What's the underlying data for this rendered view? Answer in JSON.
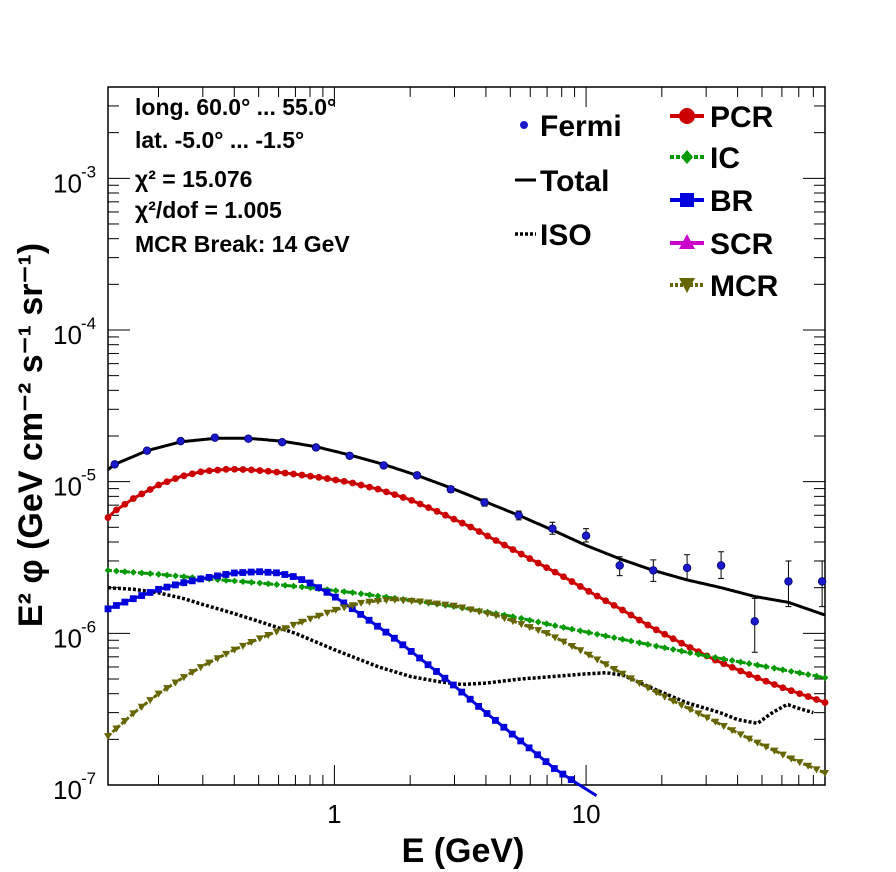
{
  "chart_data": {
    "type": "line",
    "xlabel": "E (GeV)",
    "ylabel": "E² φ (GeV cm⁻² s⁻¹ sr⁻¹)",
    "xscale": "log",
    "yscale": "log",
    "xlim": [
      0.126,
      89
    ],
    "ylim": [
      1e-07,
      0.004
    ],
    "x_ticks": [
      {
        "value": 1,
        "label": "1"
      },
      {
        "value": 10,
        "label": "10"
      }
    ],
    "y_ticks": [
      {
        "value": 1e-07,
        "base": "10",
        "exp": "-7"
      },
      {
        "value": 1e-06,
        "base": "10",
        "exp": "-6"
      },
      {
        "value": 1e-05,
        "base": "10",
        "exp": "-5"
      },
      {
        "value": 0.0001,
        "base": "10",
        "exp": "-4"
      },
      {
        "value": 0.001,
        "base": "10",
        "exp": "-3"
      }
    ],
    "info_lines": [
      "long. 60.0° ... 55.0°",
      "lat. -5.0° ... -1.5°",
      "χ² = 15.076",
      "χ²/dof = 1.005",
      "MCR Break: 14 GeV"
    ],
    "legend_left": [
      {
        "name": "Fermi",
        "color": "#1a1acc",
        "marker": "dot"
      },
      {
        "name": "Total",
        "color": "#000000",
        "marker": "solid"
      },
      {
        "name": "ISO",
        "color": "#000000",
        "marker": "dotted"
      }
    ],
    "legend_right": [
      {
        "name": "PCR",
        "color": "#cc0000",
        "marker": "circle"
      },
      {
        "name": "IC",
        "color": "#009900",
        "marker": "diamond"
      },
      {
        "name": "BR",
        "color": "#0000dd",
        "marker": "square"
      },
      {
        "name": "SCR",
        "color": "#cc00cc",
        "marker": "triangle-up"
      },
      {
        "name": "MCR",
        "color": "#666600",
        "marker": "triangle-down"
      }
    ],
    "fermi": {
      "x": [
        0.134,
        0.18,
        0.245,
        0.335,
        0.455,
        0.62,
        0.845,
        1.15,
        1.57,
        2.13,
        2.9,
        3.95,
        5.4,
        7.35,
        10.0,
        13.6,
        18.5,
        25.2,
        34.4,
        46.8,
        63.7,
        86.7
      ],
      "y": [
        1.3e-05,
        1.6e-05,
        1.85e-05,
        1.95e-05,
        1.92e-05,
        1.82e-05,
        1.68e-05,
        1.48e-05,
        1.28e-05,
        1.1e-05,
        8.9e-06,
        7.3e-06,
        6e-06,
        4.9e-06,
        4.4e-06,
        2.8e-06,
        2.6e-06,
        2.7e-06,
        2.8e-06,
        1.2e-06,
        2.2e-06,
        2.2e-06
      ],
      "err_lo": [
        1.26e-05,
        1.55e-05,
        1.8e-05,
        1.9e-05,
        1.87e-05,
        1.77e-05,
        1.64e-05,
        1.44e-05,
        1.24e-05,
        1.06e-05,
        8.5e-06,
        6.9e-06,
        5.6e-06,
        4.5e-06,
        4e-06,
        2.4e-06,
        2.2e-06,
        2.25e-06,
        2.3e-06,
        7.5e-07,
        1.5e-06,
        1.5e-06
      ],
      "err_hi": [
        1.34e-05,
        1.65e-05,
        1.9e-05,
        2e-05,
        1.97e-05,
        1.87e-05,
        1.72e-05,
        1.52e-05,
        1.32e-05,
        1.14e-05,
        9.3e-06,
        7.7e-06,
        6.4e-06,
        5.4e-06,
        4.9e-06,
        3.2e-06,
        3.05e-06,
        3.3e-06,
        3.45e-06,
        1.7e-06,
        3e-06,
        3e-06
      ]
    },
    "total": {
      "x": [
        0.126,
        0.134,
        0.18,
        0.245,
        0.335,
        0.455,
        0.62,
        0.845,
        1.15,
        1.57,
        2.13,
        2.9,
        3.95,
        5.4,
        7.35,
        10.0,
        13.6,
        18.5,
        25.2,
        34.4,
        46.8,
        63.7,
        89
      ],
      "y": [
        1.2e-05,
        1.3e-05,
        1.6e-05,
        1.83e-05,
        1.93e-05,
        1.93e-05,
        1.85e-05,
        1.7e-05,
        1.5e-05,
        1.3e-05,
        1.1e-05,
        9.1e-06,
        7.4e-06,
        6e-06,
        4.8e-06,
        3.8e-06,
        3.1e-06,
        2.6e-06,
        2.25e-06,
        2e-06,
        1.75e-06,
        1.6e-06,
        1.32e-06
      ]
    },
    "series": [
      {
        "name": "PCR",
        "color": "#cc0000",
        "marker": "circle",
        "x": [
          0.126,
          0.134,
          0.16,
          0.2,
          0.245,
          0.3,
          0.38,
          0.455,
          0.55,
          0.7,
          0.9,
          1.15,
          1.5,
          2.0,
          2.6,
          3.5,
          4.5,
          6.0,
          8.0,
          10.5,
          14.0,
          18.5,
          25.0,
          33.0,
          45.0,
          60.0,
          89
        ],
        "y": [
          5.8e-06,
          6.4e-06,
          7.8e-06,
          9.5e-06,
          1.08e-05,
          1.17e-05,
          1.21e-05,
          1.2e-05,
          1.17e-05,
          1.12e-05,
          1.06e-05,
          9.9e-06,
          8.9e-06,
          7.6e-06,
          6.3e-06,
          5e-06,
          4e-06,
          3.1e-06,
          2.4e-06,
          1.85e-06,
          1.42e-06,
          1.08e-06,
          8.3e-07,
          6.6e-07,
          5.3e-07,
          4.4e-07,
          3.5e-07
        ]
      },
      {
        "name": "IC",
        "color": "#009900",
        "marker": "diamond",
        "x": [
          0.126,
          0.2,
          0.3,
          0.5,
          0.8,
          1.2,
          2.0,
          3.0,
          5.0,
          8.0,
          12.0,
          20.0,
          30.0,
          50.0,
          89
        ],
        "y": [
          2.6e-06,
          2.45e-06,
          2.3e-06,
          2.15e-06,
          2e-06,
          1.85e-06,
          1.65e-06,
          1.5e-06,
          1.3e-06,
          1.1e-06,
          9.6e-07,
          8.1e-07,
          7.1e-07,
          6.1e-07,
          5.1e-07
        ]
      },
      {
        "name": "BR",
        "color": "#0000dd",
        "marker": "square",
        "x": [
          0.126,
          0.16,
          0.2,
          0.25,
          0.3,
          0.4,
          0.5,
          0.6,
          0.7,
          0.8,
          1.0,
          1.3,
          1.7,
          2.2,
          3.0,
          4.0,
          5.5,
          7.5,
          9.0,
          11.0
        ],
        "y": [
          1.45e-06,
          1.7e-06,
          1.95e-06,
          2.15e-06,
          2.3e-06,
          2.5e-06,
          2.55e-06,
          2.5e-06,
          2.35e-06,
          2.15e-06,
          1.75e-06,
          1.3e-06,
          9.5e-07,
          6.8e-07,
          4.5e-07,
          3e-07,
          1.95e-07,
          1.28e-07,
          1.05e-07,
          8.5e-08
        ]
      },
      {
        "name": "SCR",
        "color": "#cc00cc",
        "marker": "triangle-up",
        "x": [],
        "y": []
      },
      {
        "name": "MCR",
        "color": "#666600",
        "marker": "triangle-down",
        "x": [
          0.126,
          0.16,
          0.2,
          0.25,
          0.3,
          0.4,
          0.5,
          0.7,
          1.0,
          1.3,
          1.7,
          2.2,
          3.0,
          4.5,
          7.0,
          10.0,
          14.0,
          20.0,
          30.0,
          45.0,
          65.0,
          89
        ],
        "y": [
          2.1e-07,
          3e-07,
          4e-07,
          5.1e-07,
          6.1e-07,
          7.8e-07,
          9.2e-07,
          1.15e-06,
          1.42e-06,
          1.6e-06,
          1.67e-06,
          1.62e-06,
          1.52e-06,
          1.3e-06,
          1e-06,
          7.4e-07,
          5.4e-07,
          3.9e-07,
          2.8e-07,
          2e-07,
          1.5e-07,
          1.2e-07
        ]
      }
    ],
    "iso": {
      "x": [
        0.126,
        0.16,
        0.2,
        0.25,
        0.3,
        0.4,
        0.5,
        0.7,
        1.0,
        1.5,
        2.0,
        2.6,
        3.2,
        4.0,
        5.5,
        7.5,
        10.0,
        12.0,
        14.0,
        18.0,
        25.0,
        34.0,
        40.0,
        48.0,
        55.0,
        63.0,
        70.0,
        80.0
      ],
      "y": [
        2e-06,
        1.95e-06,
        1.85e-06,
        1.7e-06,
        1.55e-06,
        1.35e-06,
        1.2e-06,
        1e-06,
        7.8e-07,
        6e-07,
        5.2e-07,
        4.8e-07,
        4.6e-07,
        4.7e-07,
        5e-07,
        5.2e-07,
        5.4e-07,
        5.5e-07,
        5.3e-07,
        4.4e-07,
        3.5e-07,
        3e-07,
        2.7e-07,
        2.55e-07,
        3e-07,
        3.4e-07,
        3.2e-07,
        3e-07
      ]
    }
  }
}
